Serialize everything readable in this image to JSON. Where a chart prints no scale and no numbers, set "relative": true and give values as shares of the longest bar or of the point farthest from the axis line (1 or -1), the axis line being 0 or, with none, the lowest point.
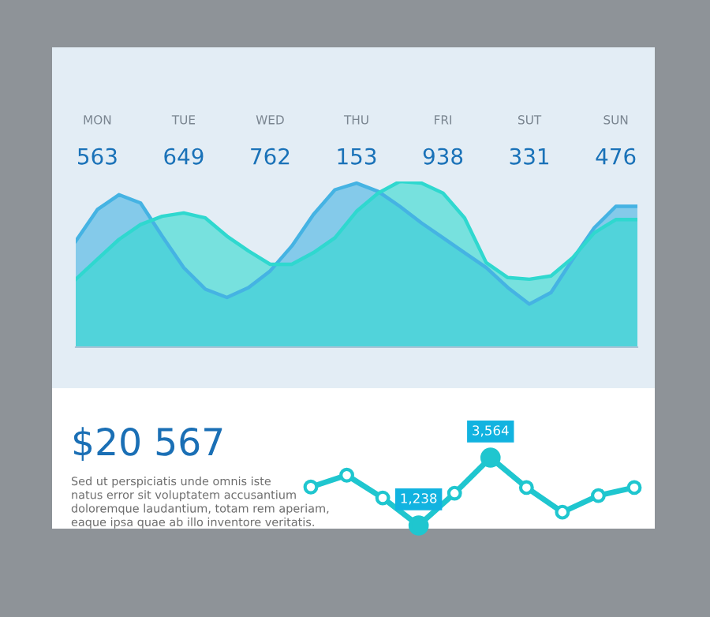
{
  "chart_data": [
    {
      "type": "area",
      "relative": true,
      "categories": [
        null,
        "MON",
        null,
        null,
        null,
        "TUE",
        null,
        null,
        null,
        "WED",
        null,
        null,
        null,
        "THU",
        null,
        null,
        null,
        "FRI",
        null,
        null,
        null,
        "SUT",
        null,
        null,
        null,
        "SUN",
        null
      ],
      "series": [
        {
          "color": "#45b3e3",
          "values": [
            0.64,
            0.83,
            0.92,
            0.87,
            0.67,
            0.48,
            0.35,
            0.3,
            0.36,
            0.46,
            0.61,
            0.8,
            0.95,
            0.99,
            0.94,
            0.85,
            0.75,
            0.66,
            0.57,
            0.48,
            0.36,
            0.26,
            0.33,
            0.53,
            0.72,
            0.85,
            0.85
          ]
        },
        {
          "color": "#2fd8cf",
          "values": [
            0.41,
            0.53,
            0.65,
            0.74,
            0.79,
            0.81,
            0.78,
            0.67,
            0.58,
            0.5,
            0.5,
            0.57,
            0.66,
            0.82,
            0.93,
            1.0,
            0.99,
            0.93,
            0.78,
            0.51,
            0.42,
            0.41,
            0.43,
            0.54,
            0.69,
            0.77,
            0.77
          ]
        }
      ],
      "annotations": [
        "563",
        "649",
        "762",
        "153",
        "938",
        "331",
        "476"
      ]
    },
    {
      "type": "line",
      "marker": "circle",
      "color": "#1fc6cf",
      "categories": [
        null,
        null,
        null,
        null,
        null,
        null,
        null,
        null,
        null,
        null
      ],
      "values": [
        2556,
        2963,
        2182,
        1238,
        2344,
        3564,
        2539,
        1694,
        2263,
        2539
      ],
      "value_labels": [
        null,
        null,
        null,
        "1,238",
        null,
        "3,564",
        null,
        null,
        null,
        null
      ],
      "annotations": [
        "$20 567",
        "Sed ut perspiciatis unde omnis iste\nnatus error sit voluptatem accusantium\ndoloremque laudantium, totam rem aperiam,\neaque ipsa quae ab illo inventore veritatis."
      ]
    }
  ]
}
